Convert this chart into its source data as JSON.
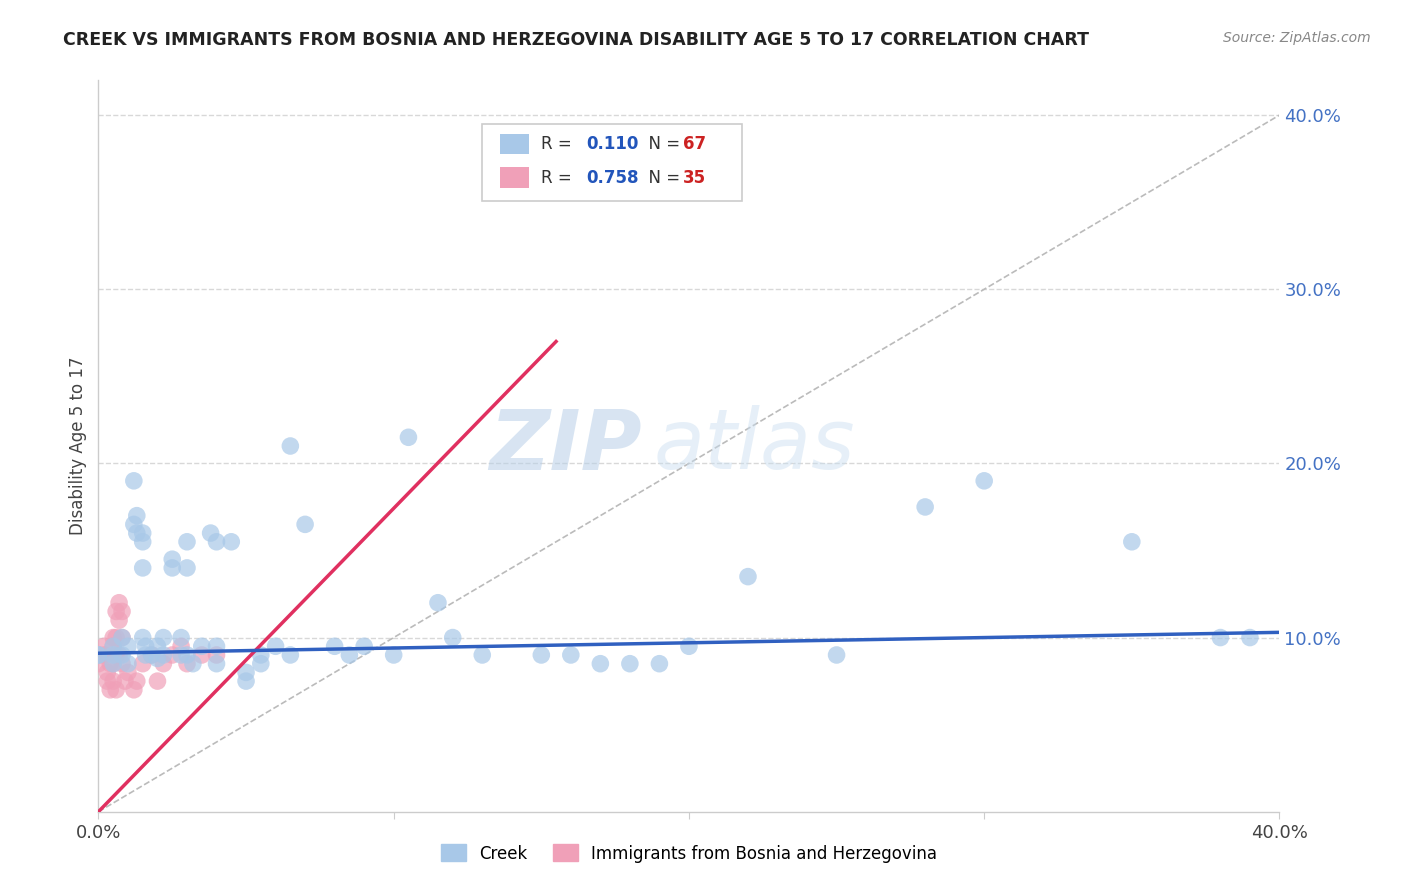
{
  "title": "CREEK VS IMMIGRANTS FROM BOSNIA AND HERZEGOVINA DISABILITY AGE 5 TO 17 CORRELATION CHART",
  "source": "Source: ZipAtlas.com",
  "ylabel": "Disability Age 5 to 17",
  "xlabel_creek": "Creek",
  "xlabel_bosnia": "Immigrants from Bosnia and Herzegovina",
  "xmin": 0.0,
  "xmax": 0.4,
  "ymin": 0.0,
  "ymax": 0.42,
  "ytick_values": [
    0.1,
    0.2,
    0.3,
    0.4
  ],
  "creek_R": 0.11,
  "creek_N": 67,
  "bosnia_R": 0.758,
  "bosnia_N": 35,
  "creek_color": "#a8c8e8",
  "bosnia_color": "#f0a0b8",
  "creek_line_color": "#3060c0",
  "bosnia_line_color": "#e03060",
  "creek_scatter": [
    [
      0.0,
      0.09
    ],
    [
      0.0,
      0.09
    ],
    [
      0.005,
      0.09
    ],
    [
      0.005,
      0.095
    ],
    [
      0.005,
      0.085
    ],
    [
      0.008,
      0.1
    ],
    [
      0.008,
      0.09
    ],
    [
      0.01,
      0.095
    ],
    [
      0.01,
      0.085
    ],
    [
      0.012,
      0.165
    ],
    [
      0.012,
      0.19
    ],
    [
      0.013,
      0.16
    ],
    [
      0.013,
      0.17
    ],
    [
      0.015,
      0.16
    ],
    [
      0.015,
      0.155
    ],
    [
      0.015,
      0.14
    ],
    [
      0.015,
      0.1
    ],
    [
      0.016,
      0.095
    ],
    [
      0.016,
      0.09
    ],
    [
      0.018,
      0.09
    ],
    [
      0.02,
      0.095
    ],
    [
      0.02,
      0.088
    ],
    [
      0.022,
      0.09
    ],
    [
      0.022,
      0.1
    ],
    [
      0.025,
      0.14
    ],
    [
      0.025,
      0.145
    ],
    [
      0.028,
      0.1
    ],
    [
      0.028,
      0.09
    ],
    [
      0.03,
      0.155
    ],
    [
      0.03,
      0.14
    ],
    [
      0.03,
      0.09
    ],
    [
      0.032,
      0.085
    ],
    [
      0.035,
      0.095
    ],
    [
      0.038,
      0.16
    ],
    [
      0.04,
      0.155
    ],
    [
      0.04,
      0.095
    ],
    [
      0.04,
      0.085
    ],
    [
      0.045,
      0.155
    ],
    [
      0.05,
      0.08
    ],
    [
      0.05,
      0.075
    ],
    [
      0.055,
      0.09
    ],
    [
      0.055,
      0.085
    ],
    [
      0.06,
      0.095
    ],
    [
      0.065,
      0.21
    ],
    [
      0.065,
      0.09
    ],
    [
      0.07,
      0.165
    ],
    [
      0.08,
      0.095
    ],
    [
      0.085,
      0.09
    ],
    [
      0.09,
      0.095
    ],
    [
      0.1,
      0.09
    ],
    [
      0.105,
      0.215
    ],
    [
      0.115,
      0.12
    ],
    [
      0.12,
      0.1
    ],
    [
      0.13,
      0.09
    ],
    [
      0.15,
      0.09
    ],
    [
      0.16,
      0.09
    ],
    [
      0.17,
      0.085
    ],
    [
      0.18,
      0.085
    ],
    [
      0.19,
      0.085
    ],
    [
      0.2,
      0.095
    ],
    [
      0.22,
      0.135
    ],
    [
      0.25,
      0.09
    ],
    [
      0.28,
      0.175
    ],
    [
      0.3,
      0.19
    ],
    [
      0.35,
      0.155
    ],
    [
      0.38,
      0.1
    ],
    [
      0.39,
      0.1
    ]
  ],
  "bosnia_scatter": [
    [
      0.0,
      0.09
    ],
    [
      0.0,
      0.085
    ],
    [
      0.002,
      0.095
    ],
    [
      0.002,
      0.09
    ],
    [
      0.003,
      0.08
    ],
    [
      0.003,
      0.075
    ],
    [
      0.004,
      0.085
    ],
    [
      0.004,
      0.07
    ],
    [
      0.005,
      0.1
    ],
    [
      0.005,
      0.095
    ],
    [
      0.005,
      0.085
    ],
    [
      0.005,
      0.075
    ],
    [
      0.006,
      0.115
    ],
    [
      0.006,
      0.1
    ],
    [
      0.006,
      0.09
    ],
    [
      0.006,
      0.07
    ],
    [
      0.007,
      0.12
    ],
    [
      0.007,
      0.11
    ],
    [
      0.007,
      0.09
    ],
    [
      0.008,
      0.115
    ],
    [
      0.008,
      0.1
    ],
    [
      0.008,
      0.085
    ],
    [
      0.009,
      0.075
    ],
    [
      0.01,
      0.08
    ],
    [
      0.012,
      0.07
    ],
    [
      0.013,
      0.075
    ],
    [
      0.015,
      0.085
    ],
    [
      0.018,
      0.09
    ],
    [
      0.02,
      0.075
    ],
    [
      0.022,
      0.085
    ],
    [
      0.025,
      0.09
    ],
    [
      0.028,
      0.095
    ],
    [
      0.03,
      0.085
    ],
    [
      0.035,
      0.09
    ],
    [
      0.04,
      0.09
    ]
  ],
  "creek_line_x": [
    0.0,
    0.4
  ],
  "creek_line_y_start": 0.091,
  "creek_line_y_end": 0.103,
  "bosnia_line_x": [
    0.0,
    0.155
  ],
  "bosnia_line_y_start": 0.0,
  "bosnia_line_y_end": 0.27,
  "diag_line_x": [
    0.0,
    0.4
  ],
  "diag_line_y": [
    0.0,
    0.4
  ],
  "watermark_zip": "ZIP",
  "watermark_atlas": "atlas",
  "background_color": "#ffffff",
  "grid_color": "#d8d8d8",
  "title_color": "#222222",
  "axis_color": "#cccccc",
  "legend_R_color": "#2255bb",
  "legend_N_color": "#cc2222",
  "ytick_color": "#4472c4",
  "source_color": "#888888"
}
